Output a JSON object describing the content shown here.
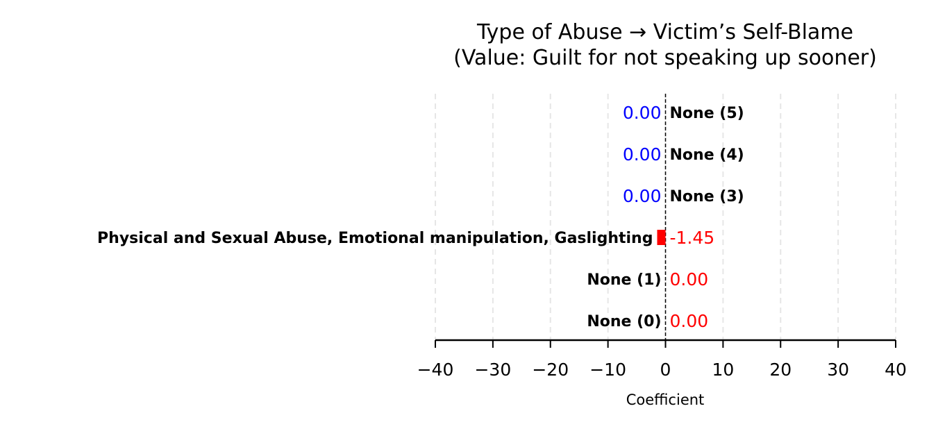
{
  "chart_data": {
    "type": "bar",
    "orientation": "horizontal",
    "title": "Type of Abuse → Victim’s Self-Blame",
    "subtitle": "(Value: Guilt for not speaking up sooner)",
    "xlabel": "Coefficient",
    "ylabel": "",
    "xlim": [
      -40,
      40
    ],
    "xticks": [
      -40,
      -30,
      -20,
      -10,
      0,
      10,
      20,
      30,
      40
    ],
    "xtick_labels": [
      "−40",
      "−30",
      "−20",
      "−10",
      "0",
      "10",
      "20",
      "30",
      "40"
    ],
    "grid": "vertical dashed",
    "zero_line": "dashed",
    "bars": [
      {
        "category": "None (0)",
        "value": 0.0,
        "value_label": "0.00",
        "color": "#ff0000",
        "label_side": "left"
      },
      {
        "category": "None (1)",
        "value": 0.0,
        "value_label": "0.00",
        "color": "#ff0000",
        "label_side": "left"
      },
      {
        "category": "Physical and Sexual Abuse, Emotional manipulation, Gaslighting",
        "value": -1.45,
        "value_label": "-1.45",
        "color": "#ff0000",
        "label_side": "left"
      },
      {
        "category": "None (3)",
        "value": 0.0,
        "value_label": "0.00",
        "color": "#0000ff",
        "label_side": "right"
      },
      {
        "category": "None (4)",
        "value": 0.0,
        "value_label": "0.00",
        "color": "#0000ff",
        "label_side": "right"
      },
      {
        "category": "None (5)",
        "value": 0.0,
        "value_label": "0.00",
        "color": "#0000ff",
        "label_side": "right"
      }
    ]
  }
}
